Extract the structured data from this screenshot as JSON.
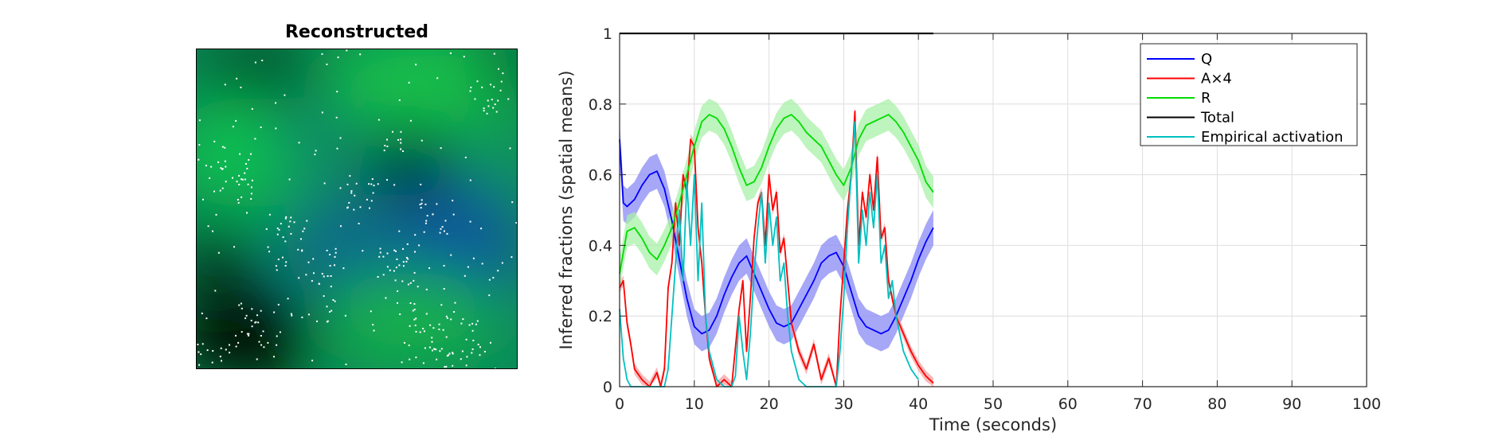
{
  "left_panel": {
    "title": "Reconstructed"
  },
  "chart_data": {
    "type": "line",
    "xlabel": "Time (seconds)",
    "ylabel": "Inferred fractions (spatial means)",
    "xlim": [
      0,
      100
    ],
    "ylim": [
      0,
      1
    ],
    "xticks": [
      0,
      10,
      20,
      30,
      40,
      50,
      60,
      70,
      80,
      90,
      100
    ],
    "yticks": [
      0,
      0.2,
      0.4,
      0.6,
      0.8,
      1
    ],
    "ytick_labels": [
      "0",
      "0.2",
      "0.4",
      "0.6",
      "0.8",
      "1"
    ],
    "grid": true,
    "legend_position": "top-right",
    "series": [
      {
        "name": "Q",
        "color": "#0000ff",
        "band_color": "#8a8af5",
        "x": [
          0,
          0.5,
          1,
          2,
          3,
          4,
          5,
          6,
          7,
          8,
          9,
          10,
          11,
          12,
          13,
          14,
          15,
          16,
          17,
          18,
          19,
          20,
          21,
          22,
          23,
          24,
          25,
          26,
          27,
          28,
          29,
          30,
          31,
          32,
          33,
          34,
          35,
          36,
          37,
          38,
          39,
          40,
          41,
          42
        ],
        "values": [
          0.7,
          0.52,
          0.51,
          0.53,
          0.57,
          0.6,
          0.61,
          0.56,
          0.47,
          0.36,
          0.25,
          0.17,
          0.15,
          0.16,
          0.2,
          0.26,
          0.31,
          0.35,
          0.37,
          0.32,
          0.27,
          0.22,
          0.18,
          0.17,
          0.18,
          0.22,
          0.26,
          0.3,
          0.35,
          0.37,
          0.38,
          0.34,
          0.27,
          0.2,
          0.17,
          0.16,
          0.15,
          0.16,
          0.2,
          0.25,
          0.3,
          0.36,
          0.41,
          0.45
        ],
        "band": 0.05
      },
      {
        "name": "A×4",
        "color": "#ff0000",
        "band_color": "#f5a0a0",
        "x": [
          0,
          0.5,
          1,
          1.5,
          2,
          3,
          4,
          5,
          5.5,
          6,
          6.5,
          7,
          7.5,
          8,
          8.5,
          9,
          9.5,
          10,
          10.5,
          11,
          11.5,
          12,
          13,
          14,
          15,
          16,
          16.5,
          17,
          17.5,
          18,
          18.5,
          19,
          19.5,
          20,
          20.5,
          21,
          21.5,
          22,
          22.5,
          23,
          24,
          25,
          26,
          27,
          28,
          29,
          29.5,
          30,
          30.5,
          31,
          31.5,
          32,
          32.5,
          33,
          33.5,
          34,
          34.5,
          35,
          35.5,
          36,
          37,
          38,
          39,
          40,
          41,
          42
        ],
        "values": [
          0.28,
          0.3,
          0.18,
          0.12,
          0.05,
          0.02,
          0.0,
          0.04,
          0.0,
          0.05,
          0.28,
          0.35,
          0.52,
          0.4,
          0.6,
          0.55,
          0.7,
          0.68,
          0.45,
          0.35,
          0.2,
          0.08,
          0.0,
          0.02,
          0.0,
          0.22,
          0.3,
          0.1,
          0.25,
          0.42,
          0.52,
          0.55,
          0.4,
          0.6,
          0.5,
          0.55,
          0.38,
          0.42,
          0.3,
          0.18,
          0.1,
          0.05,
          0.12,
          0.02,
          0.08,
          0.0,
          0.2,
          0.35,
          0.5,
          0.6,
          0.78,
          0.4,
          0.55,
          0.48,
          0.6,
          0.5,
          0.65,
          0.42,
          0.45,
          0.3,
          0.2,
          0.15,
          0.1,
          0.06,
          0.03,
          0.01
        ],
        "band": 0.015
      },
      {
        "name": "R",
        "color": "#00dd00",
        "band_color": "#a8f0a8",
        "x": [
          0,
          1,
          2,
          3,
          4,
          5,
          6,
          7,
          8,
          9,
          10,
          11,
          12,
          13,
          14,
          15,
          16,
          17,
          18,
          19,
          20,
          21,
          22,
          23,
          24,
          25,
          26,
          27,
          28,
          29,
          30,
          31,
          32,
          33,
          34,
          35,
          36,
          37,
          38,
          39,
          40,
          41,
          42
        ],
        "values": [
          0.32,
          0.44,
          0.45,
          0.42,
          0.38,
          0.36,
          0.4,
          0.45,
          0.52,
          0.6,
          0.68,
          0.75,
          0.77,
          0.76,
          0.73,
          0.68,
          0.62,
          0.57,
          0.58,
          0.62,
          0.68,
          0.73,
          0.76,
          0.77,
          0.75,
          0.72,
          0.7,
          0.68,
          0.64,
          0.6,
          0.57,
          0.62,
          0.7,
          0.74,
          0.75,
          0.76,
          0.77,
          0.75,
          0.72,
          0.68,
          0.64,
          0.58,
          0.55
        ],
        "band": 0.045
      },
      {
        "name": "Total",
        "color": "#000000",
        "x": [
          0,
          42
        ],
        "values": [
          1,
          1
        ]
      },
      {
        "name": "Empirical activation",
        "color": "#00c0c0",
        "x": [
          0,
          0.5,
          1,
          1.5,
          2,
          3,
          4,
          5,
          6,
          6.5,
          7,
          7.5,
          8,
          8.5,
          9,
          9.5,
          10,
          10.5,
          11,
          11.5,
          12,
          13,
          14,
          15,
          15.5,
          16,
          16.5,
          17,
          17.5,
          18,
          18.5,
          19,
          19.5,
          20,
          20.5,
          21,
          21.5,
          22,
          22.5,
          23,
          24,
          25,
          26,
          27,
          28,
          29,
          29.5,
          30,
          30.5,
          31,
          31.5,
          32,
          32.5,
          33,
          33.5,
          34,
          34.5,
          35,
          35.5,
          36,
          36.5,
          37,
          38,
          39,
          40
        ],
        "values": [
          0.22,
          0.08,
          0.02,
          0.0,
          0.0,
          0.0,
          0.0,
          0.0,
          0.0,
          0.05,
          0.2,
          0.35,
          0.5,
          0.3,
          0.58,
          0.4,
          0.6,
          0.3,
          0.52,
          0.2,
          0.1,
          0.02,
          0.0,
          0.0,
          0.03,
          0.2,
          0.1,
          0.02,
          0.15,
          0.32,
          0.45,
          0.55,
          0.35,
          0.52,
          0.4,
          0.48,
          0.3,
          0.35,
          0.2,
          0.1,
          0.02,
          0.0,
          0.0,
          0.0,
          0.0,
          0.0,
          0.1,
          0.25,
          0.45,
          0.6,
          0.75,
          0.35,
          0.5,
          0.4,
          0.55,
          0.45,
          0.6,
          0.35,
          0.4,
          0.25,
          0.3,
          0.2,
          0.1,
          0.05,
          0.02
        ]
      }
    ]
  }
}
